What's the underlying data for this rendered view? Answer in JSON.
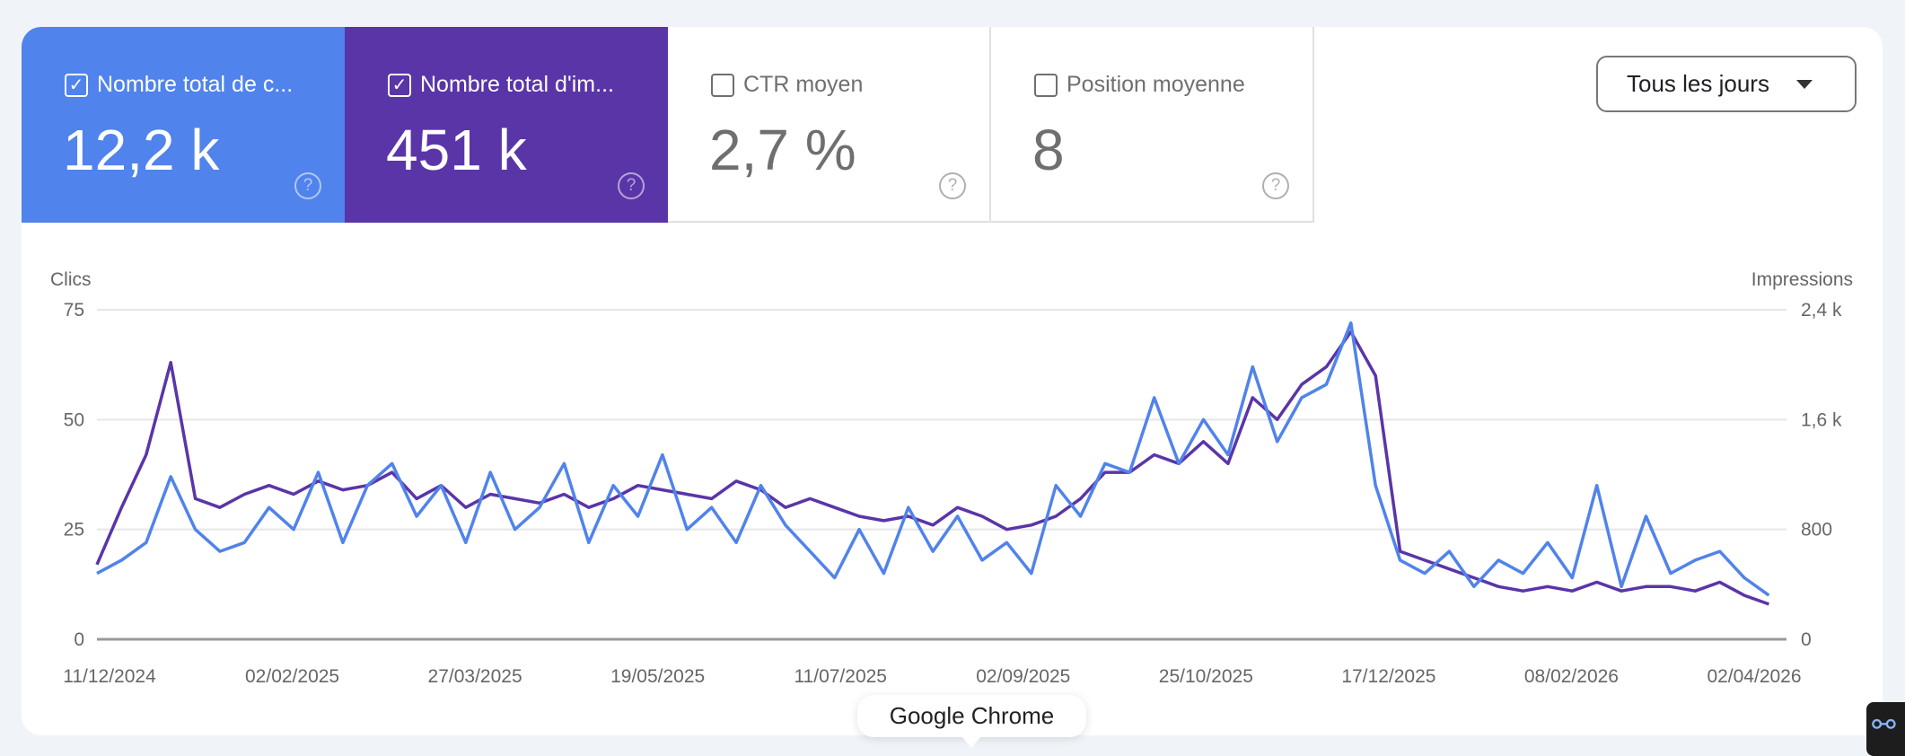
{
  "metrics": [
    {
      "label": "Nombre total de c...",
      "value": "12,2 k",
      "checked": true,
      "color": "#5083eb"
    },
    {
      "label": "Nombre total d'im...",
      "value": "451 k",
      "checked": true,
      "color": "#5a35a8"
    },
    {
      "label": "CTR moyen",
      "value": "2,7 %",
      "checked": false
    },
    {
      "label": "Position moyenne",
      "value": "8",
      "checked": false
    }
  ],
  "dropdown": {
    "label": "Tous les jours"
  },
  "tooltip": "Google Chrome",
  "chart_data": {
    "type": "line",
    "ylabel_left": "Clics",
    "ylabel_right": "Impressions",
    "y_left_ticks": [
      "0",
      "25",
      "50",
      "75"
    ],
    "ylim_left": [
      0,
      75
    ],
    "y_right_ticks": [
      "0",
      "800",
      "1,6 k",
      "2,4 k"
    ],
    "ylim_right": [
      0,
      2400
    ],
    "x_ticks": [
      "11/12/2024",
      "02/02/2025",
      "27/03/2025",
      "19/05/2025",
      "11/07/2025",
      "02/09/2025",
      "25/10/2025",
      "17/12/2025",
      "08/02/2026",
      "02/04/2026"
    ],
    "xlim": [
      "2024-12-11",
      "2026-04-06"
    ],
    "grid": true,
    "x": [
      "2024-12-11",
      "2024-12-18",
      "2024-12-25",
      "2025-01-01",
      "2025-01-08",
      "2025-01-15",
      "2025-01-22",
      "2025-01-29",
      "2025-02-05",
      "2025-02-12",
      "2025-02-19",
      "2025-02-26",
      "2025-03-05",
      "2025-03-12",
      "2025-03-19",
      "2025-03-26",
      "2025-04-02",
      "2025-04-09",
      "2025-04-16",
      "2025-04-23",
      "2025-04-30",
      "2025-05-07",
      "2025-05-14",
      "2025-05-21",
      "2025-05-28",
      "2025-06-04",
      "2025-06-11",
      "2025-06-18",
      "2025-06-25",
      "2025-07-02",
      "2025-07-09",
      "2025-07-16",
      "2025-07-23",
      "2025-07-30",
      "2025-08-06",
      "2025-08-13",
      "2025-08-20",
      "2025-08-27",
      "2025-09-03",
      "2025-09-10",
      "2025-09-17",
      "2025-09-24",
      "2025-10-01",
      "2025-10-08",
      "2025-10-15",
      "2025-10-22",
      "2025-10-29",
      "2025-11-05",
      "2025-11-12",
      "2025-11-19",
      "2025-11-26",
      "2025-12-03",
      "2025-12-10",
      "2025-12-17",
      "2025-12-24",
      "2025-12-31",
      "2026-01-07",
      "2026-01-14",
      "2026-01-21",
      "2026-01-28",
      "2026-02-04",
      "2026-02-11",
      "2026-02-18",
      "2026-02-25",
      "2026-03-04",
      "2026-03-11",
      "2026-03-18",
      "2026-03-25",
      "2026-04-01"
    ],
    "series": [
      {
        "name": "Clics",
        "axis": "left",
        "color": "#5083eb",
        "values": [
          15,
          18,
          22,
          37,
          25,
          20,
          22,
          30,
          25,
          38,
          22,
          35,
          40,
          28,
          35,
          22,
          38,
          25,
          30,
          40,
          22,
          35,
          28,
          42,
          25,
          30,
          22,
          35,
          26,
          20,
          14,
          25,
          15,
          30,
          20,
          28,
          18,
          22,
          15,
          35,
          28,
          40,
          38,
          55,
          40,
          50,
          42,
          62,
          45,
          55,
          58,
          72,
          35,
          18,
          15,
          20,
          12,
          18,
          15,
          22,
          14,
          35,
          12,
          28,
          15,
          18,
          20,
          14,
          10
        ]
      },
      {
        "name": "Impressions",
        "axis": "right",
        "color": "#5a35a8",
        "values": [
          544,
          960,
          1344,
          2016,
          1024,
          960,
          1056,
          1120,
          1056,
          1152,
          1088,
          1120,
          1216,
          1024,
          1120,
          960,
          1056,
          1024,
          992,
          1056,
          960,
          1024,
          1120,
          1088,
          1056,
          1024,
          1152,
          1088,
          960,
          1024,
          960,
          896,
          864,
          896,
          832,
          960,
          896,
          800,
          832,
          896,
          1024,
          1216,
          1216,
          1344,
          1280,
          1440,
          1280,
          1760,
          1600,
          1856,
          1984,
          2240,
          1920,
          640,
          576,
          512,
          448,
          384,
          352,
          384,
          352,
          416,
          352,
          384,
          384,
          352,
          416,
          320,
          256
        ]
      }
    ]
  }
}
